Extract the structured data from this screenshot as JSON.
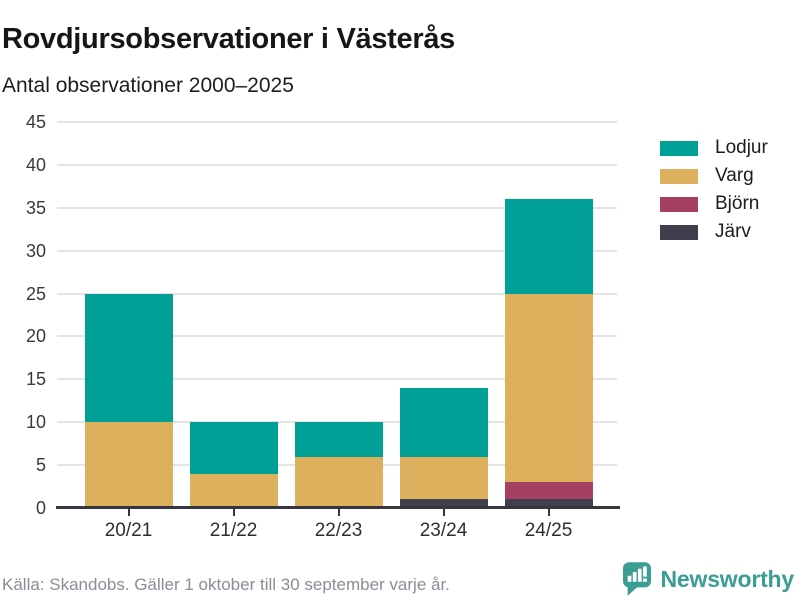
{
  "title": "Rovdjursobservationer i Västerås",
  "subtitle": "Antal observationer 2000–2025",
  "source": "Källa: Skandobs. Gäller 1 oktober till 30 september varje år.",
  "branding": {
    "name": "Newsworthy",
    "icon": "newsworthy-speech-bubble-bars-icon",
    "color": "#3a9e92"
  },
  "colors": {
    "lodjur": "#00a096",
    "varg": "#dcb05c",
    "bjorn": "#a64060",
    "jarv": "#413f4e",
    "gridline": "#e4e4e4",
    "axis": "#37363e"
  },
  "chart_data": {
    "type": "bar",
    "stacked": true,
    "title": "Rovdjursobservationer i Västerås",
    "subtitle": "Antal observationer 2000–2025",
    "categories": [
      "20/21",
      "21/22",
      "22/23",
      "23/24",
      "24/25"
    ],
    "series": [
      {
        "name": "Lodjur",
        "color": "#00a096",
        "values": [
          15,
          6,
          4,
          8,
          11
        ]
      },
      {
        "name": "Varg",
        "color": "#dcb05c",
        "values": [
          10,
          4,
          6,
          5,
          22
        ]
      },
      {
        "name": "Björn",
        "color": "#a64060",
        "values": [
          0,
          0,
          0,
          0,
          2
        ]
      },
      {
        "name": "Järv",
        "color": "#413f4e",
        "values": [
          0,
          0,
          0,
          1,
          1
        ]
      }
    ],
    "stack_order_bottom_to_top": [
      "Järv",
      "Björn",
      "Varg",
      "Lodjur"
    ],
    "totals": [
      25,
      10,
      10,
      14,
      36
    ],
    "xlabel": "",
    "ylabel": "",
    "ylim": [
      0,
      45
    ],
    "yticks": [
      0,
      5,
      10,
      15,
      20,
      25,
      30,
      35,
      40,
      45
    ],
    "grid": true,
    "legend_position": "right"
  }
}
